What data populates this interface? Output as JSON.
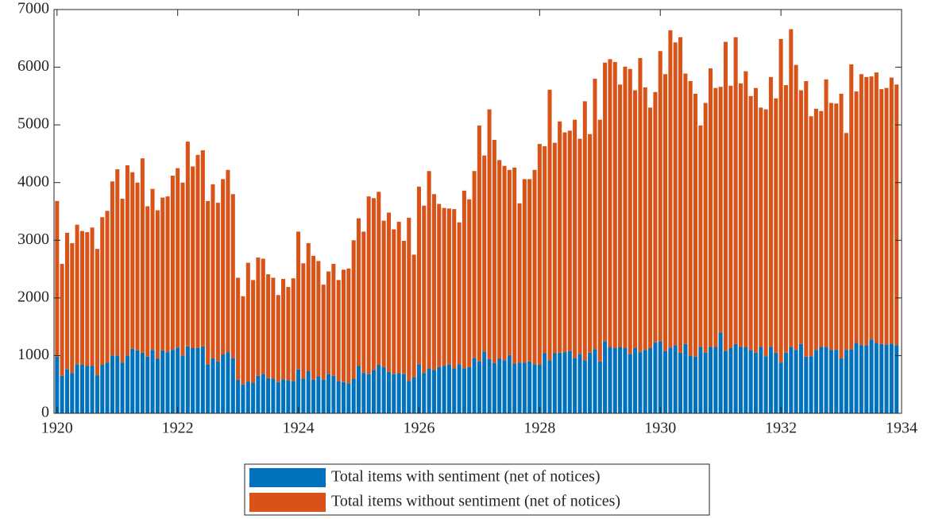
{
  "chart_data": {
    "type": "stacked_bar",
    "x": [
      1920,
      1920.083,
      1920.167,
      1920.25,
      1920.333,
      1920.417,
      1920.5,
      1920.583,
      1920.667,
      1920.75,
      1920.833,
      1920.917,
      1921,
      1921.083,
      1921.167,
      1921.25,
      1921.333,
      1921.417,
      1921.5,
      1921.583,
      1921.667,
      1921.75,
      1921.833,
      1921.917,
      1922,
      1922.083,
      1922.167,
      1922.25,
      1922.333,
      1922.417,
      1922.5,
      1922.583,
      1922.667,
      1922.75,
      1922.833,
      1922.917,
      1923,
      1923.083,
      1923.167,
      1923.25,
      1923.333,
      1923.417,
      1923.5,
      1923.583,
      1923.667,
      1923.75,
      1923.833,
      1923.917,
      1924,
      1924.083,
      1924.167,
      1924.25,
      1924.333,
      1924.417,
      1924.5,
      1924.583,
      1924.667,
      1924.75,
      1924.833,
      1924.917,
      1925,
      1925.083,
      1925.167,
      1925.25,
      1925.333,
      1925.417,
      1925.5,
      1925.583,
      1925.667,
      1925.75,
      1925.833,
      1925.917,
      1926,
      1926.083,
      1926.167,
      1926.25,
      1926.333,
      1926.417,
      1926.5,
      1926.583,
      1926.667,
      1926.75,
      1926.833,
      1926.917,
      1927,
      1927.083,
      1927.167,
      1927.25,
      1927.333,
      1927.417,
      1927.5,
      1927.583,
      1927.667,
      1927.75,
      1927.833,
      1927.917,
      1928,
      1928.083,
      1928.167,
      1928.25,
      1928.333,
      1928.417,
      1928.5,
      1928.583,
      1928.667,
      1928.75,
      1928.833,
      1928.917,
      1929,
      1929.083,
      1929.167,
      1929.25,
      1929.333,
      1929.417,
      1929.5,
      1929.583,
      1929.667,
      1929.75,
      1929.833,
      1929.917,
      1930,
      1930.083,
      1930.167,
      1930.25,
      1930.333,
      1930.417,
      1930.5,
      1930.583,
      1930.667,
      1930.75,
      1930.833,
      1930.917,
      1931,
      1931.083,
      1931.167,
      1931.25,
      1931.333,
      1931.417,
      1931.5,
      1931.583,
      1931.667,
      1931.75,
      1931.833,
      1931.917,
      1932,
      1932.083,
      1932.167,
      1932.25,
      1932.333,
      1932.417,
      1932.5,
      1932.583,
      1932.667,
      1932.75,
      1932.833,
      1932.917,
      1933,
      1933.083,
      1933.167,
      1933.25,
      1933.333,
      1933.417,
      1933.5,
      1933.583,
      1933.667,
      1933.75,
      1933.833,
      1933.917
    ],
    "series": [
      {
        "name": "Total items with sentiment (net of notices)",
        "color": "#0072BD",
        "values": [
          980,
          650,
          760,
          700,
          850,
          840,
          820,
          820,
          660,
          840,
          880,
          1000,
          1000,
          880,
          1000,
          1120,
          1090,
          1050,
          980,
          1100,
          950,
          1090,
          1060,
          1100,
          1140,
          1000,
          1160,
          1130,
          1130,
          1160,
          850,
          950,
          900,
          1020,
          1060,
          960,
          580,
          500,
          550,
          530,
          650,
          680,
          610,
          600,
          540,
          590,
          570,
          560,
          760,
          600,
          730,
          580,
          640,
          580,
          680,
          650,
          560,
          540,
          520,
          600,
          820,
          700,
          680,
          750,
          840,
          800,
          720,
          680,
          700,
          680,
          560,
          620,
          850,
          700,
          780,
          750,
          800,
          820,
          850,
          780,
          850,
          780,
          800,
          960,
          900,
          1070,
          940,
          870,
          950,
          920,
          1010,
          860,
          880,
          880,
          900,
          850,
          840,
          1040,
          920,
          1040,
          1050,
          1060,
          1080,
          960,
          1030,
          920,
          1050,
          1110,
          900,
          1250,
          1150,
          1130,
          1150,
          1130,
          1030,
          1130,
          1060,
          1100,
          1130,
          1230,
          1250,
          1080,
          1140,
          1180,
          1050,
          1200,
          1000,
          980,
          1150,
          1050,
          1150,
          1150,
          1400,
          1080,
          1130,
          1200,
          1150,
          1150,
          1100,
          1050,
          1150,
          990,
          1150,
          1050,
          880,
          1050,
          1150,
          1100,
          1200,
          980,
          990,
          1100,
          1150,
          1150,
          1100,
          1100,
          950,
          1100,
          1110,
          1220,
          1180,
          1180,
          1280,
          1220,
          1200,
          1190,
          1210,
          1180
        ]
      },
      {
        "name": "Total items without sentiment (net of notices)",
        "color": "#D95319",
        "values": [
          2700,
          1940,
          2370,
          2250,
          2420,
          2320,
          2320,
          2400,
          2190,
          2560,
          2630,
          3020,
          3230,
          2840,
          3300,
          3060,
          2910,
          3370,
          2610,
          2790,
          2570,
          2650,
          2700,
          3020,
          3110,
          3000,
          3550,
          3150,
          3350,
          3400,
          2830,
          3020,
          2750,
          3040,
          3160,
          2840,
          1770,
          1530,
          2060,
          1780,
          2050,
          2000,
          1800,
          1750,
          1510,
          1740,
          1620,
          1780,
          2390,
          2000,
          2220,
          2150,
          2000,
          1650,
          1780,
          1940,
          1750,
          1950,
          1990,
          2400,
          2560,
          2450,
          3080,
          2980,
          3000,
          2540,
          2760,
          2510,
          2620,
          2310,
          2830,
          2130,
          3080,
          2900,
          3420,
          3050,
          2830,
          2740,
          2700,
          2760,
          2460,
          3080,
          2910,
          3240,
          4090,
          3400,
          4330,
          3870,
          3440,
          3370,
          3210,
          3400,
          2760,
          3180,
          3160,
          3370,
          3830,
          3590,
          4690,
          3650,
          4010,
          3810,
          3820,
          4130,
          3730,
          4490,
          3790,
          4690,
          4190,
          4830,
          4990,
          4960,
          4550,
          4880,
          4940,
          4470,
          5100,
          4550,
          4170,
          4340,
          5030,
          4800,
          5500,
          5250,
          5470,
          4690,
          4760,
          4560,
          3840,
          4330,
          4830,
          4490,
          4260,
          5360,
          4550,
          5320,
          4570,
          4780,
          4400,
          4590,
          4150,
          4280,
          4680,
          4410,
          5610,
          4640,
          5510,
          4940,
          4400,
          4780,
          4160,
          4180,
          4090,
          4640,
          4280,
          4270,
          4590,
          3760,
          4940,
          4360,
          4700,
          4650,
          4560,
          4690,
          4420,
          4450,
          4610,
          4520
        ]
      }
    ],
    "xlim": [
      1919.95,
      1934
    ],
    "xticks": [
      1920,
      1922,
      1924,
      1926,
      1928,
      1930,
      1932,
      1934
    ],
    "ylim": [
      0,
      7000
    ],
    "yticks": [
      0,
      1000,
      2000,
      3000,
      4000,
      5000,
      6000,
      7000
    ],
    "legend": "bottom"
  }
}
